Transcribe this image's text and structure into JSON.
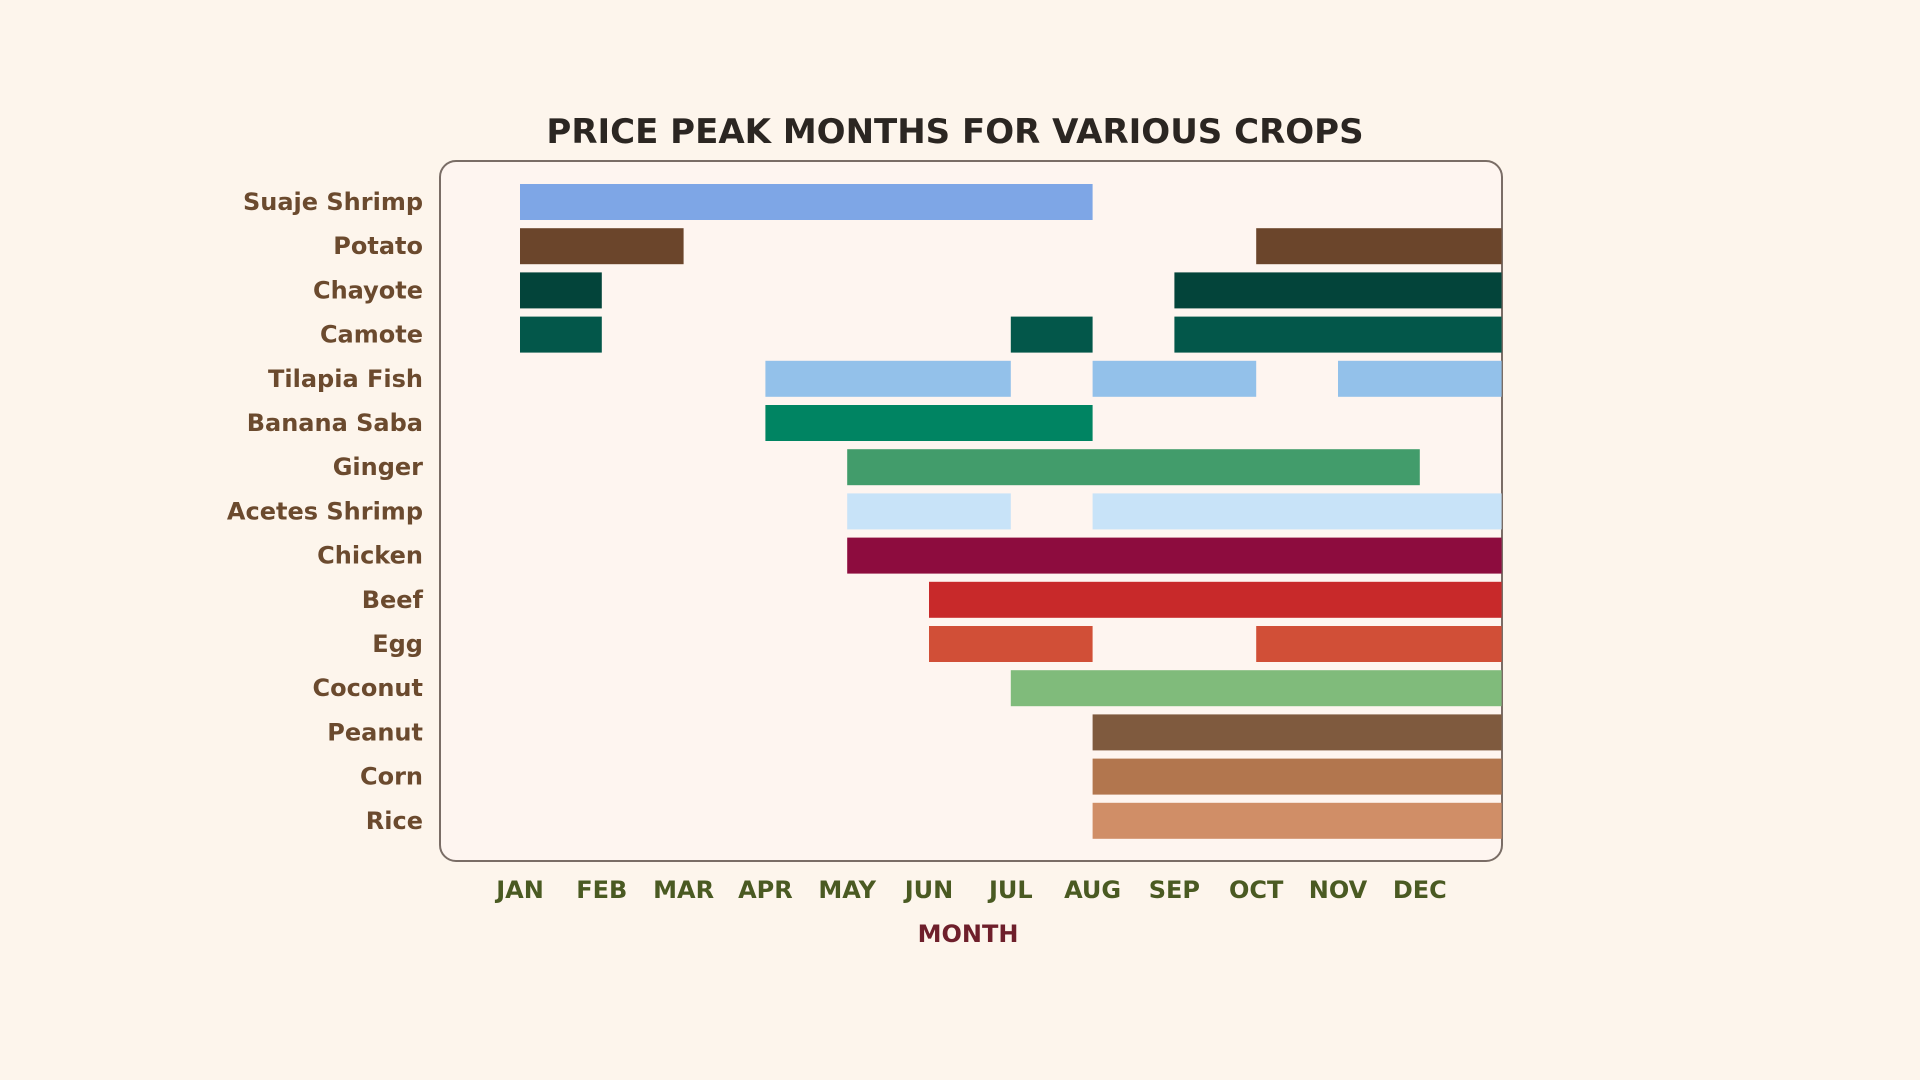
{
  "chart_data": {
    "type": "bar",
    "subtype": "timeline",
    "title": "Price Peak Months for Various Crops",
    "xlabel": "MONTH",
    "ylabel": "",
    "months": [
      "JAN",
      "FEB",
      "MAR",
      "APR",
      "MAY",
      "JUN",
      "JUL",
      "AUG",
      "SEP",
      "OCT",
      "NOV",
      "DEC"
    ],
    "grid": false,
    "series": [
      {
        "name": "Suaje Shrimp",
        "color": "#7ea6e6",
        "ranges": [
          [
            1,
            7
          ]
        ]
      },
      {
        "name": "Potato",
        "color": "#6b452b",
        "ranges": [
          [
            1,
            2
          ],
          [
            10,
            12
          ]
        ]
      },
      {
        "name": "Chayote",
        "color": "#03443a",
        "ranges": [
          [
            1,
            1
          ],
          [
            9,
            12
          ]
        ]
      },
      {
        "name": "Camote",
        "color": "#03574a",
        "ranges": [
          [
            1,
            1
          ],
          [
            7,
            7
          ],
          [
            9,
            12
          ]
        ]
      },
      {
        "name": "Tilapia Fish",
        "color": "#93c1ea",
        "ranges": [
          [
            4,
            6
          ],
          [
            8,
            9
          ],
          [
            11,
            12
          ]
        ]
      },
      {
        "name": "Banana Saba",
        "color": "#008462",
        "ranges": [
          [
            4,
            7
          ]
        ]
      },
      {
        "name": "Ginger",
        "color": "#429c6b",
        "ranges": [
          [
            5,
            11
          ]
        ]
      },
      {
        "name": "Acetes Shrimp",
        "color": "#c8e3f8",
        "ranges": [
          [
            5,
            6
          ],
          [
            8,
            12
          ]
        ]
      },
      {
        "name": "Chicken",
        "color": "#8d0c3e",
        "ranges": [
          [
            5,
            12
          ]
        ]
      },
      {
        "name": "Beef",
        "color": "#c8292a",
        "ranges": [
          [
            6,
            12
          ]
        ]
      },
      {
        "name": "Egg",
        "color": "#d14f37",
        "ranges": [
          [
            6,
            7
          ],
          [
            10,
            12
          ]
        ]
      },
      {
        "name": "Coconut",
        "color": "#80bb7b",
        "ranges": [
          [
            7,
            12
          ]
        ]
      },
      {
        "name": "Peanut",
        "color": "#7f5a3e",
        "ranges": [
          [
            8,
            12
          ]
        ]
      },
      {
        "name": "Corn",
        "color": "#b2764e",
        "ranges": [
          [
            8,
            12
          ]
        ]
      },
      {
        "name": "Rice",
        "color": "#d08e67",
        "ranges": [
          [
            8,
            12
          ]
        ]
      }
    ],
    "colors": {
      "background": "#fdf5ec",
      "plot_background": "#fef5f0",
      "plot_border": "#7a6d66",
      "title": "#2b2622",
      "row_label": "#6b4a2e",
      "month_label": "#4a5a22",
      "axis_title": "#6e1f2b"
    }
  }
}
